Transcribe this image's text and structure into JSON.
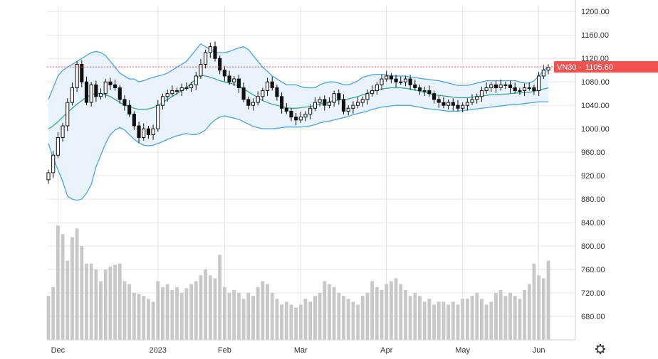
{
  "chart_data": {
    "type": "candlestick",
    "symbol": "VN30",
    "last_price": "1105.60",
    "ylim": [
      640,
      1210
    ],
    "yticks": [
      "1200.00",
      "1160.00",
      "1120.00",
      "1080.00",
      "1040.00",
      "1000.00",
      "960.00",
      "920.00",
      "880.00",
      "840.00",
      "800.00",
      "760.00",
      "720.00",
      "680.00"
    ],
    "ytick_values": [
      1200,
      1160,
      1120,
      1080,
      1040,
      1000,
      960,
      920,
      880,
      840,
      800,
      760,
      720,
      680
    ],
    "xticks": [
      {
        "label": "Dec",
        "index": 2
      },
      {
        "label": "2023",
        "index": 23
      },
      {
        "label": "Feb",
        "index": 37
      },
      {
        "label": "Mar",
        "index": 53
      },
      {
        "label": "Apr",
        "index": 71
      },
      {
        "label": "May",
        "index": 87
      },
      {
        "label": "Jun",
        "index": 103
      }
    ],
    "grid": true,
    "price_line": 1105.6,
    "colors": {
      "candle": "#111111",
      "band": "#4fa3e0",
      "band_fill": "#e8f3fb",
      "middle": "#3aa88e",
      "volume": "#c8c8c8",
      "price_tag": "#ef5350",
      "grid": "#e6e6e6"
    },
    "close": [
      925,
      955,
      985,
      1005,
      1045,
      1070,
      1110,
      1080,
      1045,
      1075,
      1055,
      1060,
      1080,
      1075,
      1070,
      1050,
      1040,
      1025,
      1005,
      985,
      1000,
      990,
      1000,
      1040,
      1055,
      1060,
      1065,
      1065,
      1070,
      1070,
      1075,
      1090,
      1110,
      1130,
      1140,
      1120,
      1100,
      1090,
      1080,
      1085,
      1070,
      1050,
      1040,
      1045,
      1055,
      1065,
      1080,
      1070,
      1055,
      1035,
      1030,
      1020,
      1015,
      1020,
      1025,
      1035,
      1045,
      1050,
      1040,
      1045,
      1060,
      1050,
      1030,
      1035,
      1040,
      1045,
      1050,
      1060,
      1065,
      1075,
      1085,
      1090,
      1085,
      1080,
      1080,
      1085,
      1075,
      1070,
      1065,
      1065,
      1060,
      1050,
      1045,
      1040,
      1045,
      1040,
      1035,
      1040,
      1045,
      1050,
      1055,
      1065,
      1070,
      1075,
      1070,
      1075,
      1075,
      1070,
      1065,
      1065,
      1070,
      1070,
      1065,
      1090,
      1100,
      1105
    ],
    "volume": [
      715,
      730,
      835,
      820,
      775,
      815,
      830,
      800,
      770,
      770,
      760,
      740,
      760,
      765,
      768,
      770,
      740,
      735,
      720,
      718,
      715,
      710,
      705,
      740,
      730,
      735,
      725,
      730,
      720,
      728,
      735,
      740,
      750,
      760,
      750,
      745,
      785,
      730,
      720,
      725,
      720,
      710,
      720,
      715,
      730,
      740,
      735,
      720,
      710,
      700,
      705,
      700,
      695,
      700,
      710,
      705,
      715,
      720,
      740,
      735,
      730,
      720,
      715,
      710,
      705,
      700,
      715,
      720,
      740,
      730,
      725,
      735,
      740,
      745,
      735,
      725,
      715,
      720,
      715,
      705,
      710,
      700,
      705,
      705,
      700,
      705,
      700,
      710,
      710,
      715,
      720,
      710,
      700,
      705,
      720,
      725,
      715,
      720,
      715,
      710,
      725,
      735,
      770,
      750,
      745,
      775
    ],
    "bollinger_upper": [
      1050,
      1070,
      1090,
      1100,
      1105,
      1110,
      1115,
      1120,
      1125,
      1130,
      1132,
      1130,
      1125,
      1115,
      1105,
      1095,
      1090,
      1085,
      1085,
      1080,
      1082,
      1085,
      1088,
      1090,
      1092,
      1095,
      1100,
      1105,
      1110,
      1115,
      1125,
      1135,
      1145,
      1140,
      1135,
      1130,
      1130,
      1130,
      1132,
      1135,
      1138,
      1140,
      1135,
      1125,
      1115,
      1105,
      1098,
      1090,
      1085,
      1080,
      1075,
      1075,
      1075,
      1072,
      1070,
      1070,
      1070,
      1075,
      1078,
      1080,
      1080,
      1078,
      1075,
      1075,
      1078,
      1082,
      1088,
      1090,
      1092,
      1093,
      1093,
      1092,
      1090,
      1090,
      1090,
      1090,
      1088,
      1088,
      1086,
      1085,
      1084,
      1083,
      1082,
      1080,
      1078,
      1076,
      1074,
      1074,
      1074,
      1076,
      1078,
      1080,
      1082,
      1082,
      1082,
      1082,
      1082,
      1082,
      1082,
      1080,
      1078,
      1078,
      1082,
      1090,
      1100,
      1106
    ],
    "bollinger_middle": [
      1000,
      1005,
      1012,
      1020,
      1028,
      1035,
      1042,
      1048,
      1054,
      1058,
      1060,
      1060,
      1058,
      1055,
      1050,
      1045,
      1040,
      1038,
      1035,
      1033,
      1033,
      1034,
      1036,
      1040,
      1045,
      1050,
      1055,
      1060,
      1065,
      1070,
      1078,
      1085,
      1092,
      1090,
      1088,
      1085,
      1082,
      1080,
      1078,
      1076,
      1073,
      1068,
      1063,
      1058,
      1053,
      1048,
      1045,
      1042,
      1040,
      1038,
      1036,
      1035,
      1035,
      1036,
      1037,
      1038,
      1040,
      1042,
      1044,
      1046,
      1048,
      1049,
      1050,
      1051,
      1053,
      1055,
      1058,
      1061,
      1064,
      1066,
      1068,
      1069,
      1070,
      1070,
      1070,
      1069,
      1068,
      1066,
      1064,
      1062,
      1060,
      1058,
      1057,
      1056,
      1055,
      1054,
      1053,
      1053,
      1053,
      1054,
      1055,
      1056,
      1057,
      1058,
      1058,
      1059,
      1059,
      1060,
      1061,
      1061,
      1062,
      1062,
      1064,
      1066,
      1068,
      1070
    ],
    "bollinger_lower": [
      975,
      950,
      930,
      910,
      885,
      880,
      878,
      880,
      890,
      905,
      935,
      955,
      975,
      990,
      998,
      1002,
      998,
      990,
      982,
      976,
      972,
      971,
      972,
      975,
      978,
      982,
      985,
      988,
      990,
      992,
      990,
      990,
      993,
      998,
      1008,
      1015,
      1020,
      1022,
      1020,
      1018,
      1016,
      1012,
      1008,
      1004,
      1002,
      1000,
      1000,
      1000,
      1001,
      1002,
      1003,
      1003,
      1003,
      1003,
      1004,
      1005,
      1007,
      1010,
      1012,
      1013,
      1015,
      1017,
      1019,
      1021,
      1024,
      1026,
      1028,
      1030,
      1033,
      1035,
      1037,
      1038,
      1039,
      1040,
      1040,
      1040,
      1040,
      1038,
      1037,
      1035,
      1034,
      1033,
      1032,
      1031,
      1030,
      1030,
      1030,
      1031,
      1032,
      1033,
      1034,
      1035,
      1036,
      1037,
      1038,
      1039,
      1040,
      1041,
      1041,
      1042,
      1043,
      1044,
      1045,
      1046,
      1046,
      1046
    ]
  }
}
